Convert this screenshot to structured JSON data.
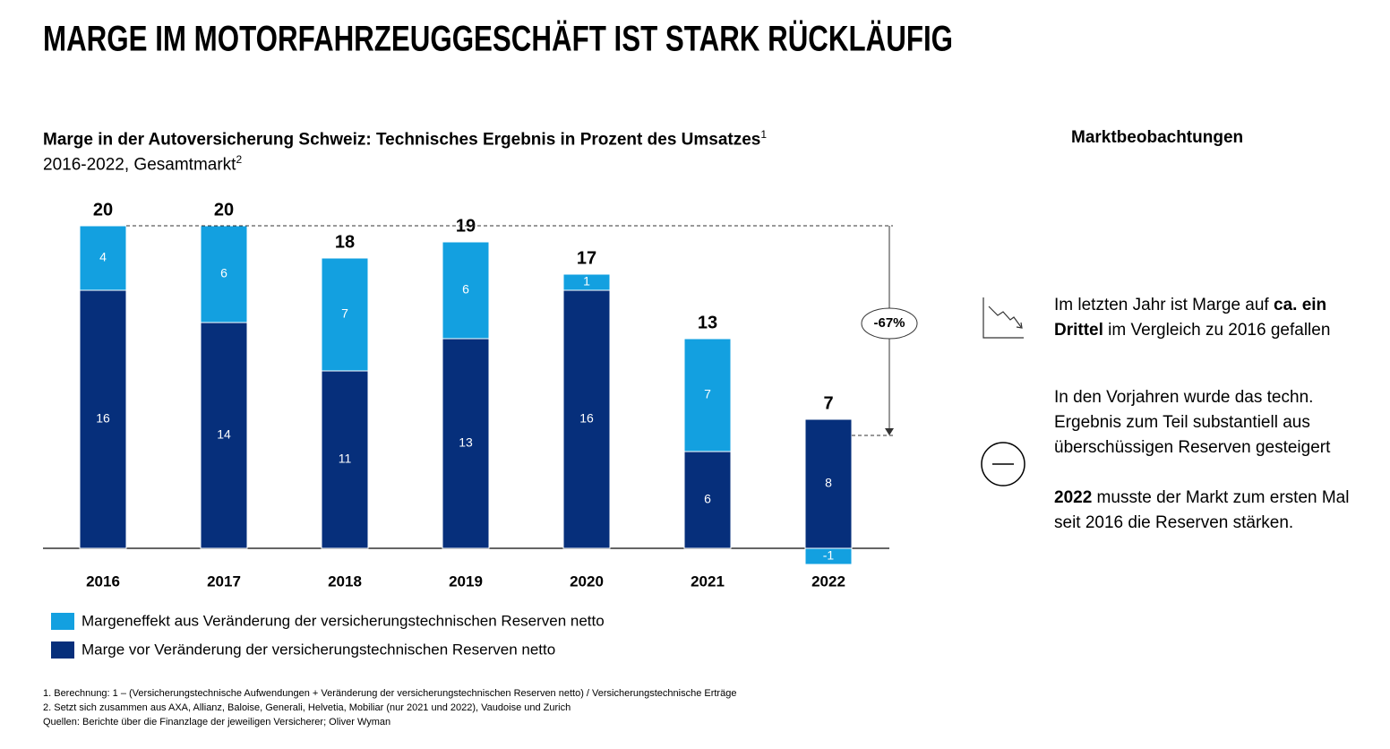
{
  "title": "MARGE IM MOTORFAHRZEUGGESCHÄFT IST STARK RÜCKLÄUFIG",
  "chart_data": {
    "type": "bar",
    "stacked": true,
    "subtitle": "Marge in der Autoversicherung Schweiz:  Technisches Ergebnis in Prozent des Umsatzes",
    "subtitle_note": "1",
    "period": "2016-2022, Gesamtmarkt",
    "period_note": "2",
    "categories": [
      "2016",
      "2017",
      "2018",
      "2019",
      "2020",
      "2021",
      "2022"
    ],
    "series": [
      {
        "name": "Marge vor Veränderung der versicherungstechnischen Reserven netto",
        "color": "#062f7b",
        "values": [
          16,
          14,
          11,
          13,
          16,
          6,
          8
        ]
      },
      {
        "name": "Margeneffekt aus Veränderung der versicherungstechnischen Reserven netto",
        "color": "#13a0e0",
        "values": [
          4,
          6,
          7,
          6,
          1,
          7,
          -1
        ]
      }
    ],
    "totals": [
      20,
      20,
      18,
      19,
      17,
      13,
      7
    ],
    "annotation": "-67%"
  },
  "side_panel": {
    "heading": "Marktbeobachtungen",
    "paragraphs": [
      [
        {
          "text": "Im letzten Jahr ist Marge auf ",
          "bold": false
        },
        {
          "text": "ca. ein Drittel",
          "bold": true
        },
        {
          "text": " im Vergleich zu 2016 gefallen",
          "bold": false
        }
      ],
      [
        {
          "text": "In den Vorjahren wurde das techn. Ergebnis zum Teil substantiell aus überschüssigen Reserven gesteigert",
          "bold": false
        }
      ],
      [
        {
          "text": "2022",
          "bold": true
        },
        {
          "text": " musste der Markt zum ersten Mal seit 2016 die Reserven stärken.",
          "bold": false
        }
      ]
    ]
  },
  "footnotes": [
    "1. Berechnung: 1 – (Versicherungstechnische Aufwendungen + Veränderung der versicherungstechnischen Reserven netto) / Versicherungstechnische Erträge",
    "2. Setzt sich zusammen aus AXA, Allianz, Baloise, Generali, Helvetia, Mobiliar (nur 2021 und 2022), Vaudoise und Zurich",
    "Quellen: Berichte über die Finanzlage der jeweiligen Versicherer; Oliver Wyman"
  ]
}
